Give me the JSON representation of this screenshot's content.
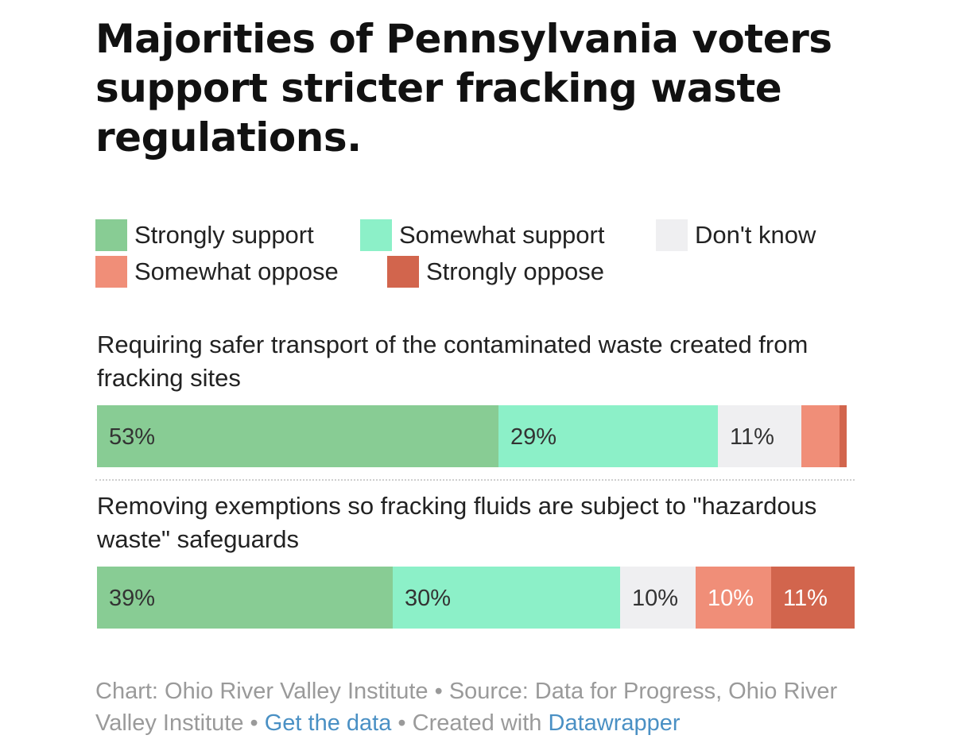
{
  "chart_data": {
    "type": "bar",
    "stacked": true,
    "orientation": "horizontal",
    "title": "Majorities of Pennsylvania voters support stricter fracking waste regulations.",
    "legend": [
      {
        "name": "Strongly support",
        "color": "#88cc94"
      },
      {
        "name": "Somewhat support",
        "color": "#8cf0c8"
      },
      {
        "name": "Don't know",
        "color": "#efeff1"
      },
      {
        "name": "Somewhat oppose",
        "color": "#f08e78"
      },
      {
        "name": "Strongly oppose",
        "color": "#d2654d"
      }
    ],
    "categories": [
      "Requiring safer transport of the contaminated waste created from fracking sites",
      "Removing exemptions so fracking fluids are subject to \"hazardous waste\" safeguards"
    ],
    "series": [
      {
        "name": "Strongly support",
        "values": [
          53,
          39
        ],
        "labels": [
          "53%",
          "39%"
        ],
        "label_color": "#333333"
      },
      {
        "name": "Somewhat support",
        "values": [
          29,
          30
        ],
        "labels": [
          "29%",
          "30%"
        ],
        "label_color": "#333333"
      },
      {
        "name": "Don't know",
        "values": [
          11,
          10
        ],
        "labels": [
          "11%",
          "10%"
        ],
        "label_color": "#333333"
      },
      {
        "name": "Somewhat oppose",
        "values": [
          5,
          10
        ],
        "labels": [
          "",
          "10%"
        ],
        "label_color": "#ffffff"
      },
      {
        "name": "Strongly oppose",
        "values": [
          1,
          11
        ],
        "labels": [
          "",
          "11%"
        ],
        "label_color": "#ffffff"
      }
    ],
    "xlim": [
      0,
      100
    ]
  },
  "footer": {
    "chart_credit": "Chart: Ohio River Valley Institute",
    "sep1": " • ",
    "source": "Source: Data for Progress, Ohio River Valley Institute",
    "sep2": " • ",
    "get_data": "Get the data",
    "sep3": " • ",
    "created_with": "Created with ",
    "datawrapper": "Datawrapper"
  }
}
